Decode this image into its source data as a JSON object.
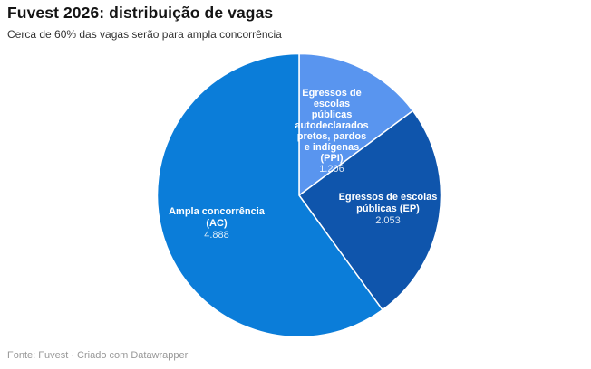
{
  "header": {
    "title": "Fuvest 2026: distribuição de vagas",
    "subtitle": "Cerca de 60% das vagas serão para ampla concorrência"
  },
  "footer": {
    "text": "Fonte: Fuvest · Criado com Datawrapper"
  },
  "chart_data": {
    "type": "pie",
    "title": "Fuvest 2026: distribuição de vagas",
    "subtitle": "Cerca de 60% das vagas serão para ampla concorrência",
    "start_angle_deg": 0,
    "direction": "clockwise",
    "legend": "none",
    "labels_inside_slices": true,
    "slice_border_color": "#ffffff",
    "label_text_color": "#ffffff",
    "slices": [
      {
        "id": "ppi",
        "label": "Egressos de escolas públicas autodeclarados pretos, pardos e indígenas (PPI)",
        "label_lines": "Egressos de\nescolas\npúblicas\nautodeclarados\npretos, pardos\ne indígenas\n(PPI)",
        "value": 1206,
        "display_value": "1.206",
        "color": "#5995ef"
      },
      {
        "id": "ep",
        "label": "Egressos de escolas públicas (EP)",
        "label_lines": "Egressos de escolas\npúblicas (EP)",
        "value": 2053,
        "display_value": "2.053",
        "color": "#0f55ac"
      },
      {
        "id": "ac",
        "label": "Ampla concorrência (AC)",
        "label_lines": "Ampla concorrência\n(AC)",
        "value": 4888,
        "display_value": "4.888",
        "color": "#0b7dd9"
      }
    ]
  }
}
